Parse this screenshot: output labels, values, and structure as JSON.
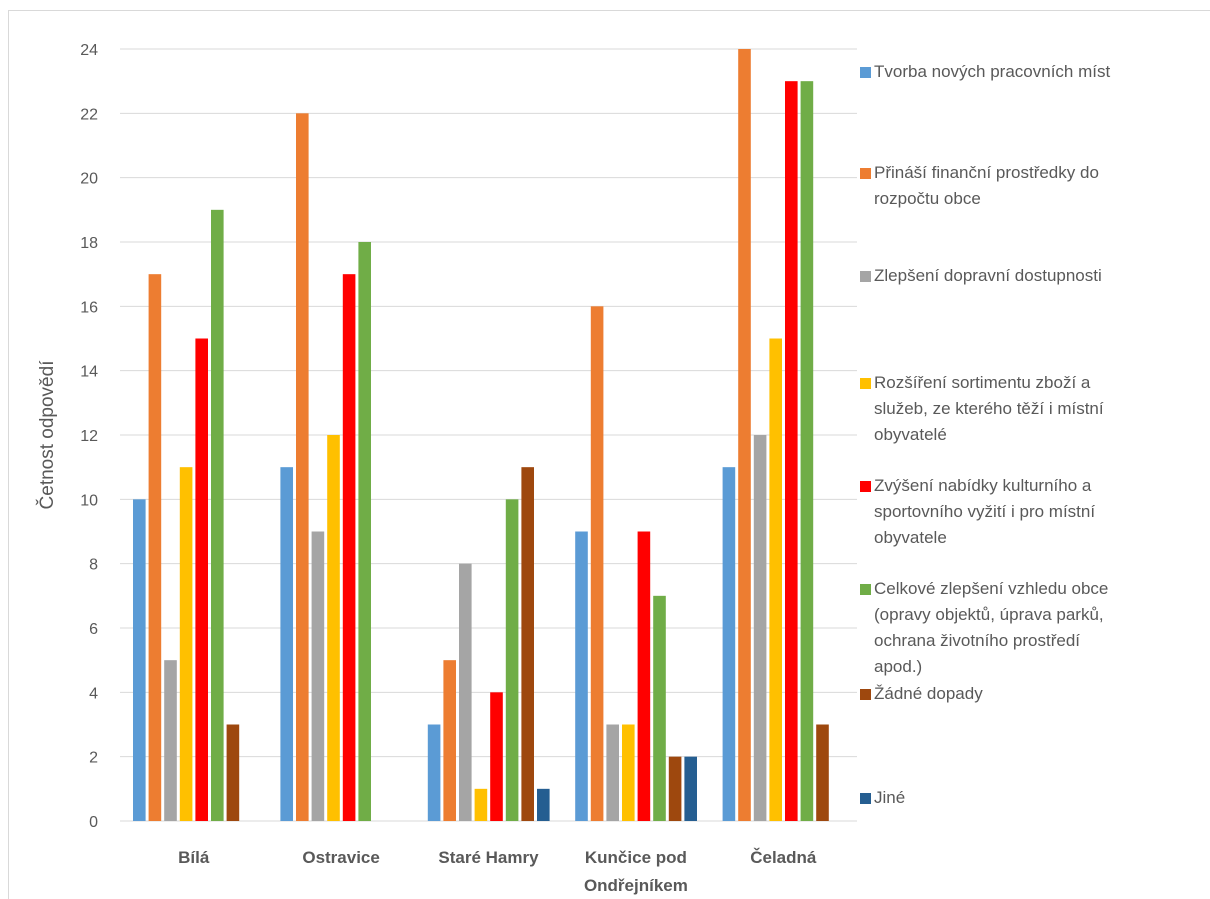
{
  "chart_data": {
    "type": "bar",
    "ylabel": "Četnost odpovědí",
    "ylim": [
      0,
      24
    ],
    "yticks": [
      "0",
      "2",
      "4",
      "6",
      "8",
      "10",
      "12",
      "14",
      "16",
      "18",
      "20",
      "22",
      "24"
    ],
    "categories": [
      [
        "Bílá"
      ],
      [
        "Ostravice"
      ],
      [
        "Staré Hamry"
      ],
      [
        "Kunčice pod",
        "Ondřejníkem"
      ],
      [
        "Čeladná"
      ]
    ],
    "series": [
      {
        "name": "Tvorba nových pracovních míst",
        "color": "#5b9bd5",
        "values": [
          10,
          11,
          3,
          9,
          11
        ]
      },
      {
        "name": "Přináší finanční prostředky do rozpočtu obce",
        "color": "#ed7d31",
        "values": [
          17,
          22,
          5,
          16,
          24
        ]
      },
      {
        "name": "Zlepšení dopravní dostupnosti",
        "color": "#a5a5a5",
        "values": [
          5,
          9,
          8,
          3,
          12
        ]
      },
      {
        "name": "Rozšíření sortimentu zboží a služeb, ze kterého těží i místní obyvatelé",
        "color": "#ffc000",
        "values": [
          11,
          12,
          1,
          3,
          15
        ]
      },
      {
        "name": "Zvýšení nabídky kulturního a sportovního vyžití i pro místní obyvatele",
        "color": "#ff0000",
        "values": [
          15,
          17,
          4,
          9,
          23
        ]
      },
      {
        "name": "Celkové zlepšení vzhledu obce (opravy objektů, úprava parků, ochrana životního prostředí apod.)",
        "color": "#70ad47",
        "values": [
          19,
          18,
          10,
          7,
          23
        ]
      },
      {
        "name": "Žádné dopady",
        "color": "#9e480e",
        "values": [
          3,
          0,
          11,
          2,
          3
        ]
      },
      {
        "name": "Jiné",
        "color": "#255e91",
        "values": [
          0,
          0,
          1,
          2,
          0
        ]
      }
    ],
    "legend": {
      "position": "right",
      "lines": [
        [
          "Tvorba nových pracovních míst"
        ],
        [
          "Přináší finanční prostředky do",
          "rozpočtu obce"
        ],
        [
          "Zlepšení dopravní dostupnosti"
        ],
        [
          "Rozšíření sortimentu zboží a",
          "služeb, ze kterého těží i místní",
          "obyvatelé"
        ],
        [
          "Zvýšení nabídky kulturního a",
          "sportovního vyžití i pro místní",
          "obyvatele"
        ],
        [
          "Celkové zlepšení vzhledu obce",
          "(opravy objektů, úprava parků,",
          "ochrana životního prostředí",
          "apod.)"
        ],
        [
          "Žádné dopady"
        ],
        [
          "Jiné"
        ]
      ]
    },
    "grid": true
  }
}
